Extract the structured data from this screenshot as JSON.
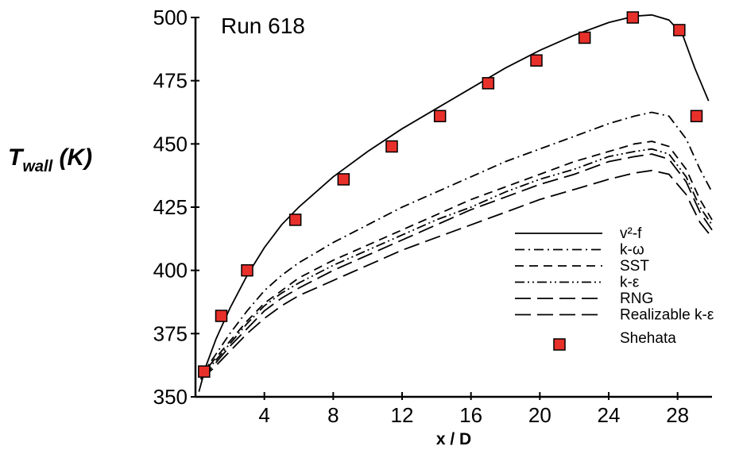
{
  "chart_data": {
    "type": "line",
    "title": "Run 618",
    "xlabel": "x / D",
    "ylabel_main": "T",
    "ylabel_sub": "wall",
    "ylabel_unit": " (K)",
    "xlim": [
      0,
      30
    ],
    "ylim": [
      350,
      500
    ],
    "xticks": [
      4,
      8,
      12,
      16,
      20,
      24,
      28
    ],
    "yticks": [
      350,
      375,
      400,
      425,
      450,
      475,
      500
    ],
    "grid": false,
    "legend_position": "bottom-right",
    "series": [
      {
        "name": "v²-f",
        "style": "solid",
        "x": [
          0.2,
          0.6,
          1.2,
          2,
          3,
          4,
          5,
          6,
          8,
          10,
          12,
          14,
          16,
          18,
          20,
          22,
          24,
          25.5,
          26.5,
          27.5,
          28.3,
          29,
          29.8
        ],
        "y": [
          352,
          362,
          373,
          385,
          398,
          409,
          418,
          425,
          437,
          447,
          456,
          464,
          472,
          480,
          487,
          493,
          498,
          500.5,
          501,
          499,
          493,
          480,
          467
        ]
      },
      {
        "name": "k-ω",
        "style": "dashdot",
        "x": [
          0.3,
          1,
          2,
          3,
          4,
          5,
          6,
          8,
          10,
          12,
          14,
          16,
          18,
          20,
          22,
          24,
          25.5,
          26.5,
          27.5,
          28.5,
          29.3,
          30
        ],
        "y": [
          358,
          365,
          375,
          384,
          392,
          398,
          403,
          411,
          418,
          425,
          431,
          437,
          443,
          448,
          453,
          458,
          461,
          462.5,
          461,
          452,
          440,
          431
        ]
      },
      {
        "name": "SST",
        "style": "dashed",
        "x": [
          0.3,
          1,
          2,
          3,
          4,
          5,
          6,
          8,
          10,
          12,
          14,
          16,
          18,
          20,
          22,
          24,
          25.5,
          26.5,
          27.5,
          28.5,
          29.3,
          30
        ],
        "y": [
          358,
          364,
          372,
          380,
          387,
          392,
          397,
          404,
          410,
          416,
          422,
          428,
          433,
          438,
          443,
          447,
          450,
          451,
          449,
          440,
          428,
          420
        ]
      },
      {
        "name": "k-ε",
        "style": "dashdotdot",
        "x": [
          0.3,
          1,
          2,
          3,
          4,
          5,
          6,
          8,
          10,
          12,
          14,
          16,
          18,
          20,
          22,
          24,
          25.5,
          26.5,
          27.5,
          28.5,
          29.3,
          30
        ],
        "y": [
          358,
          363,
          371,
          379,
          386,
          391,
          395,
          402,
          408,
          414,
          420,
          425,
          431,
          436,
          440,
          445,
          447,
          448,
          446,
          437,
          425,
          418
        ]
      },
      {
        "name": "RNG",
        "style": "longdash",
        "x": [
          0.3,
          1,
          2,
          3,
          4,
          5,
          6,
          8,
          10,
          12,
          14,
          16,
          18,
          20,
          22,
          24,
          25.5,
          26.5,
          27.5,
          28.5,
          29.3,
          30
        ],
        "y": [
          357,
          362,
          370,
          377,
          384,
          389,
          393,
          400,
          406,
          412,
          418,
          424,
          429,
          434,
          438,
          443,
          445,
          446,
          444,
          435,
          423,
          416
        ]
      },
      {
        "name": "Realizable k-ε",
        "style": "longdash",
        "x": [
          0.3,
          1,
          2,
          3,
          4,
          5,
          6,
          8,
          10,
          12,
          14,
          16,
          18,
          20,
          22,
          24,
          25.5,
          26.5,
          27.5,
          28.5,
          29.3,
          30
        ],
        "y": [
          357,
          361,
          368,
          375,
          381,
          386,
          390,
          396,
          402,
          408,
          413,
          418,
          423,
          428,
          432,
          436,
          438.5,
          439.5,
          438,
          430,
          419,
          413
        ]
      },
      {
        "name": "Shehata",
        "style": "markers",
        "x": [
          0.5,
          1.5,
          3,
          5.8,
          8.6,
          11.4,
          14.2,
          17,
          19.8,
          22.6,
          25.4,
          28.1,
          29.1
        ],
        "y": [
          360,
          382,
          400,
          420,
          436,
          449,
          461,
          474,
          483,
          492,
          500,
          495,
          461
        ]
      }
    ]
  }
}
